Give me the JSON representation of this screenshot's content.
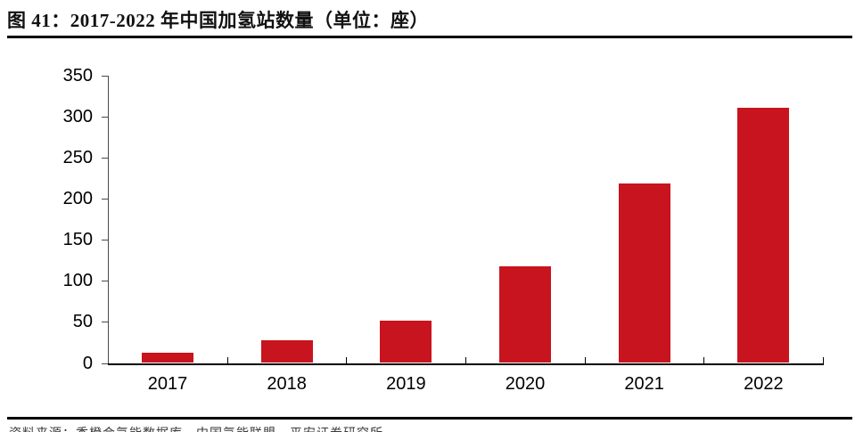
{
  "figure": {
    "title": "图 41：2017-2022 年中国加氢站数量（单位：座）"
  },
  "chart_data": {
    "type": "bar",
    "title": "2017-2022 年中国加氢站数量",
    "unit": "座",
    "categories": [
      "2017",
      "2018",
      "2019",
      "2020",
      "2021",
      "2022"
    ],
    "values": [
      12,
      28,
      52,
      118,
      218,
      310
    ],
    "xlabel": "",
    "ylabel": "",
    "ylim": [
      0,
      350
    ],
    "ytick_interval": 50,
    "ytick_labels": [
      "0",
      "50",
      "100",
      "150",
      "200",
      "250",
      "300",
      "350"
    ],
    "grid": false,
    "legend": "none",
    "bar_color": "#C8141E",
    "axis_color": "#000000"
  },
  "source": {
    "text": "资料来源：香橙会氢能数据库，中国氢能联盟，平安证券研究所"
  }
}
